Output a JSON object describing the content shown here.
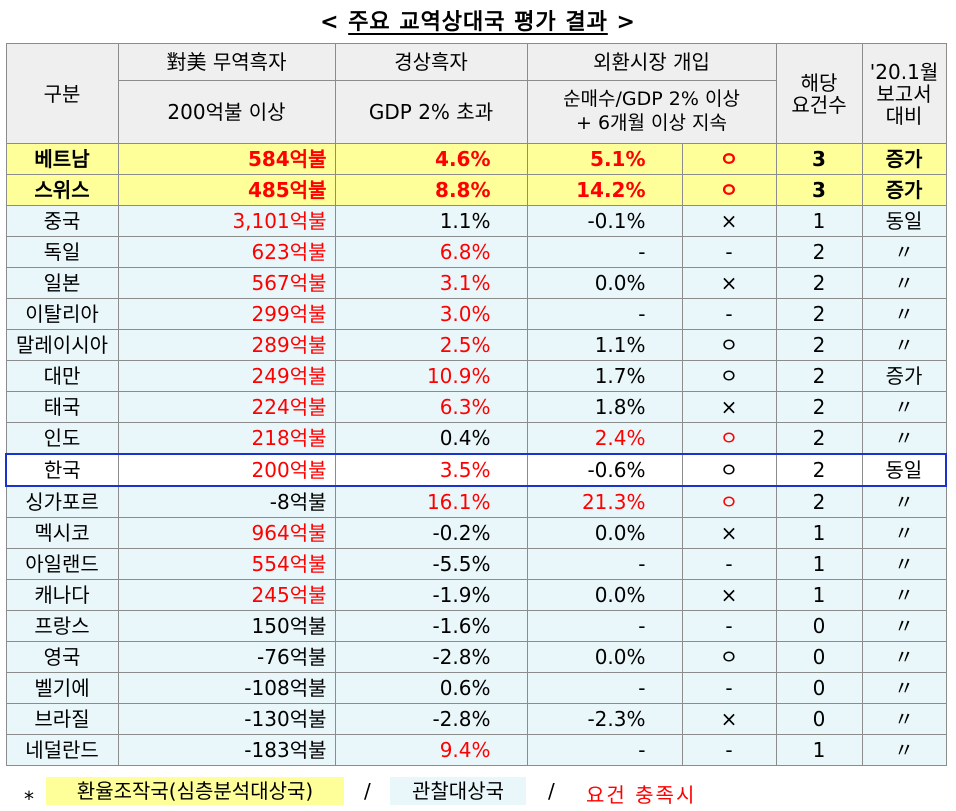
{
  "title": {
    "lt": "<",
    "text": "주요 교역상대국 평가 결과",
    "gt": ">"
  },
  "header": {
    "category": "구분",
    "trade": "對美 무역흑자",
    "trade_sub": "200억불 이상",
    "current": "경상흑자",
    "current_sub": "GDP 2% 초과",
    "fx": "외환시장 개입",
    "fx_sub1": "순매수/GDP 2% 이상",
    "fx_sub2": "+ 6개월 이상 지속",
    "count1": "해당",
    "count2": "요건수",
    "cmp1": "'20.1월",
    "cmp2": "보고서",
    "cmp3": "대비"
  },
  "rows": [
    {
      "name": "베트남",
      "trade": "584억불",
      "current": "4.6%",
      "fx": "5.1%",
      "mark": "ㅇ",
      "count": "3",
      "cmp": "증가"
    },
    {
      "name": "스위스",
      "trade": "485억불",
      "current": "8.8%",
      "fx": "14.2%",
      "mark": "ㅇ",
      "count": "3",
      "cmp": "증가"
    },
    {
      "name": "중국",
      "trade": "3,101억불",
      "current": "1.1%",
      "fx": "-0.1%",
      "mark": "×",
      "count": "1",
      "cmp": "동일"
    },
    {
      "name": "독일",
      "trade": "623억불",
      "current": "6.8%",
      "fx": "-",
      "mark": "-",
      "count": "2",
      "cmp": "〃"
    },
    {
      "name": "일본",
      "trade": "567억불",
      "current": "3.1%",
      "fx": "0.0%",
      "mark": "×",
      "count": "2",
      "cmp": "〃"
    },
    {
      "name": "이탈리아",
      "trade": "299억불",
      "current": "3.0%",
      "fx": "-",
      "mark": "-",
      "count": "2",
      "cmp": "〃"
    },
    {
      "name": "말레이시아",
      "trade": "289억불",
      "current": "2.5%",
      "fx": "1.1%",
      "mark": "ㅇ",
      "count": "2",
      "cmp": "〃"
    },
    {
      "name": "대만",
      "trade": "249억불",
      "current": "10.9%",
      "fx": "1.7%",
      "mark": "ㅇ",
      "count": "2",
      "cmp": "증가"
    },
    {
      "name": "태국",
      "trade": "224억불",
      "current": "6.3%",
      "fx": "1.8%",
      "mark": "×",
      "count": "2",
      "cmp": "〃"
    },
    {
      "name": "인도",
      "trade": "218억불",
      "current": "0.4%",
      "fx": "2.4%",
      "mark": "ㅇ",
      "count": "2",
      "cmp": "〃"
    },
    {
      "name": "한국",
      "trade": "200억불",
      "current": "3.5%",
      "fx": "-0.6%",
      "mark": "ㅇ",
      "count": "2",
      "cmp": "동일"
    },
    {
      "name": "싱가포르",
      "trade": "-8억불",
      "current": "16.1%",
      "fx": "21.3%",
      "mark": "ㅇ",
      "count": "2",
      "cmp": "〃"
    },
    {
      "name": "멕시코",
      "trade": "964억불",
      "current": "-0.2%",
      "fx": "0.0%",
      "mark": "×",
      "count": "1",
      "cmp": "〃"
    },
    {
      "name": "아일랜드",
      "trade": "554억불",
      "current": "-5.5%",
      "fx": "-",
      "mark": "-",
      "count": "1",
      "cmp": "〃"
    },
    {
      "name": "캐나다",
      "trade": "245억불",
      "current": "-1.9%",
      "fx": "0.0%",
      "mark": "×",
      "count": "1",
      "cmp": "〃"
    },
    {
      "name": "프랑스",
      "trade": "150억불",
      "current": "-1.6%",
      "fx": "-",
      "mark": "-",
      "count": "0",
      "cmp": "〃"
    },
    {
      "name": "영국",
      "trade": "-76억불",
      "current": "-2.8%",
      "fx": "0.0%",
      "mark": "ㅇ",
      "count": "0",
      "cmp": "〃"
    },
    {
      "name": "벨기에",
      "trade": "-108억불",
      "current": "0.6%",
      "fx": "-",
      "mark": "-",
      "count": "0",
      "cmp": "〃"
    },
    {
      "name": "브라질",
      "trade": "-130억불",
      "current": "-2.8%",
      "fx": "-2.3%",
      "mark": "×",
      "count": "0",
      "cmp": "〃"
    },
    {
      "name": "네덜란드",
      "trade": "-183억불",
      "current": "9.4%",
      "fx": "-",
      "mark": "-",
      "count": "1",
      "cmp": "〃"
    }
  ],
  "legend": {
    "star": "*",
    "monitoring_deep": "환율조작국(심층분석대상국)",
    "sep": "/",
    "observation": "관찰대상국",
    "met": "요건 충족시"
  },
  "colors": {
    "deep_analysis_bg": "#ffff99",
    "observation_bg": "#e9f7fa",
    "criterion_met_text": "#ff0000",
    "korea_outline": "#1a33cc",
    "header_bg": "#efefef"
  }
}
